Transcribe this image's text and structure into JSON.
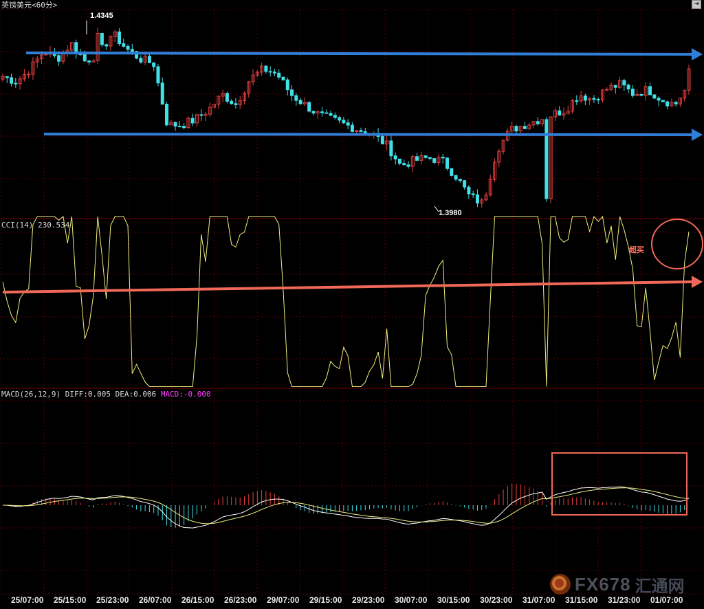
{
  "window": {
    "title": "英镑美元<60分>",
    "corner_icon": "expand-icon"
  },
  "colors": {
    "up_candle": "#e84040",
    "down_candle": "#40e0e8",
    "grid": "#5a0000",
    "cci_line": "#f0f080",
    "diff_line": "#ffffff",
    "dea_line": "#f0f080",
    "trend_blue": "#2f7fd8",
    "trend_red": "#f06858",
    "annotation": "#f06858"
  },
  "panels": {
    "price": {
      "high_label": "1.4345",
      "low_label": "1.3980"
    },
    "cci": {
      "name": "CCI(14)",
      "value": "230.534",
      "annotation": "超买"
    },
    "macd": {
      "name": "MACD(26,12,9)",
      "diff_text": "DIFF:0.005",
      "dea_text": "DEA:0.006",
      "macd_text": "MACD:-0.000"
    }
  },
  "x_axis": {
    "labels": [
      "25/07:00",
      "25/15:00",
      "25/23:00",
      "26/07:00",
      "26/15:00",
      "26/23:00",
      "29/07:00",
      "29/15:00",
      "29/23:00",
      "30/07:00",
      "30/15:00",
      "30/23:00",
      "31/07:00",
      "31/15:00",
      "31/23:00",
      "01/07:00"
    ]
  },
  "watermark": {
    "brand": "FX678",
    "cn": "汇通网"
  },
  "chart_data": [
    {
      "type": "candlestick",
      "title": "英镑美元<60分>",
      "series": [
        {
          "name": "GBPUSD",
          "close_path": [
            1.4235,
            1.4225,
            1.425,
            1.4285,
            1.427,
            1.43,
            1.4265,
            1.428,
            1.432,
            1.429,
            1.427,
            1.426,
            1.414,
            1.414,
            1.415,
            1.417,
            1.42,
            1.418,
            1.423,
            1.425,
            1.424,
            1.42,
            1.418,
            1.416,
            1.415,
            1.414,
            1.413,
            1.412,
            1.41,
            1.406,
            1.407,
            1.4075,
            1.407,
            1.404,
            1.4,
            1.3985,
            1.409,
            1.413,
            1.414,
            1.415,
            1.416,
            1.417,
            1.42,
            1.419,
            1.421,
            1.422,
            1.42,
            1.421,
            1.419,
            1.418,
            1.422
          ]
        }
      ],
      "labeled_high": 1.4345,
      "labeled_low": 1.398
    },
    {
      "type": "line",
      "title": "CCI(14)",
      "series": [
        {
          "name": "CCI(14)",
          "last_value": 230.534
        }
      ]
    },
    {
      "type": "bar",
      "title": "MACD(26,12,9)",
      "series": [
        {
          "name": "DIFF",
          "last_value": 0.005
        },
        {
          "name": "DEA",
          "last_value": 0.006
        },
        {
          "name": "MACD",
          "last_value": -0.0
        }
      ]
    }
  ]
}
